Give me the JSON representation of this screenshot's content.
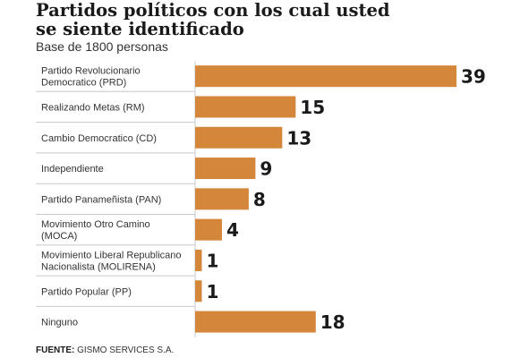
{
  "chart_data": {
    "type": "bar",
    "orientation": "horizontal",
    "title_lines": [
      "Partidos políticos con los cual usted",
      "se siente identificado"
    ],
    "subtitle": "Base de 1800 personas",
    "categories": [
      [
        "Partido Revolucionario",
        "Democratico (PRD)"
      ],
      [
        "Realizando Metas (RM)"
      ],
      [
        "Cambio Democratico (CD)"
      ],
      [
        "Independiente"
      ],
      [
        "Partido Panameñista (PAN)"
      ],
      [
        "Movimiento Otro Camino",
        "(MOCA)"
      ],
      [
        "Movimiento Liberal Republicano",
        "Nacionalista (MOLIRENA)"
      ],
      [
        "Partido Popular (PP)"
      ],
      [
        "Ninguno"
      ]
    ],
    "values": [
      39,
      15,
      13,
      9,
      8,
      4,
      1,
      1,
      18
    ],
    "xlim": [
      0,
      39
    ],
    "bar_color": "#d4873a",
    "grid": false
  },
  "source": {
    "label": "FUENTE:",
    "text": " GISMO SERVICES S.A."
  }
}
